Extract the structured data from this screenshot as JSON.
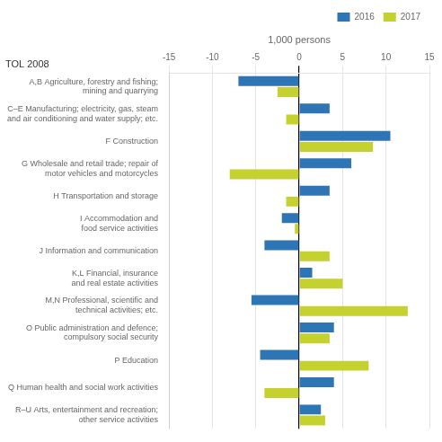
{
  "chart_data": {
    "type": "bar",
    "orientation": "horizontal",
    "categories": [
      "A,B Agriculture, forestry and fishing;\nmining and quarrying",
      "C–E Manufacturing; electricity, gas, steam\nand air conditioning and water supply; etc.",
      "F Construction",
      "G Wholesale and retail trade; repair of\nmotor vehicles and motorcycles",
      "H Transportation and storage",
      "I Accommodation and\nfood service activities",
      "J Information and communication",
      "K,L Financial, insurance\nand real estate activities",
      "M,N Professional, scientific and\ntechnical activities; etc.",
      "O Public administration and defence;\ncompulsory social security",
      "P Education",
      "Q Human health and social work activities",
      "R–U Arts, entertainment and recreation;\nother service activities"
    ],
    "series": [
      {
        "name": "2016",
        "color": "#2e75b6",
        "values": [
          -7.0,
          3.5,
          10.5,
          6.0,
          3.5,
          -2.0,
          -4.0,
          1.5,
          -5.5,
          4.0,
          -4.5,
          4.0,
          2.5
        ]
      },
      {
        "name": "2017",
        "color": "#c5d12e",
        "values": [
          -2.5,
          -1.5,
          8.5,
          -8.0,
          -1.5,
          -0.5,
          3.5,
          5.0,
          12.5,
          3.5,
          8.0,
          -4.0,
          3.0
        ]
      }
    ],
    "xlabel": "1,000 persons",
    "annotation": "TOL 2008",
    "xlim": [
      -15,
      15
    ],
    "xticks": [
      -15,
      -10,
      -5,
      0,
      5,
      10,
      15
    ],
    "grid": true,
    "legend": "upper right"
  }
}
